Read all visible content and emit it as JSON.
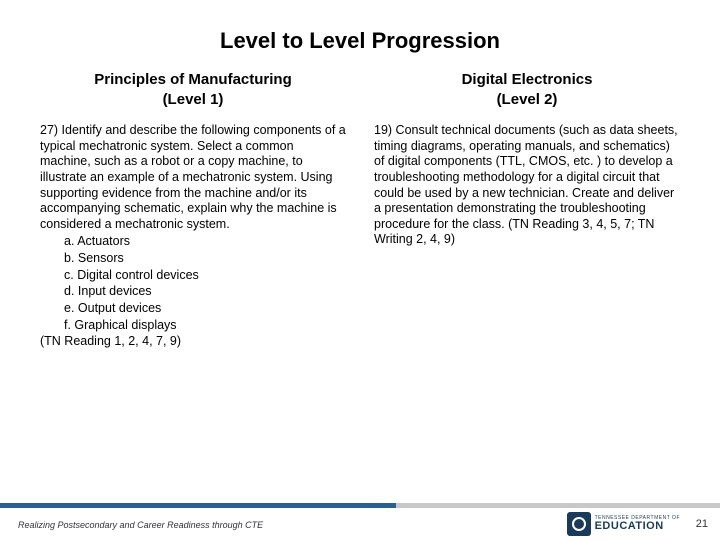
{
  "title": "Level to Level Progression",
  "left": {
    "header": "Principles of Manufacturing\n(Level 1)",
    "intro": "27) Identify and describe the following components of a typical mechatronic system. Select a common machine, such as a robot or a copy machine, to illustrate an example of a mechatronic system. Using supporting evidence from the machine and/or its accompanying schematic, explain why the machine is considered a mechatronic system.",
    "items": {
      "a": "a. Actuators",
      "b": "b. Sensors",
      "c": "c. Digital control devices",
      "d": "d. Input devices",
      "e": "e. Output devices",
      "f": "f. Graphical displays"
    },
    "standards": "(TN Reading 1, 2, 4, 7, 9)"
  },
  "right": {
    "header": "Digital Electronics\n(Level 2)",
    "body": "19) Consult technical documents (such as data sheets, timing diagrams, operating manuals, and schematics) of digital components (TTL, CMOS, etc. ) to develop a troubleshooting methodology for a digital circuit that could be used by a new technician. Create and deliver a presentation demonstrating the troubleshooting procedure for the class. (TN Reading 3, 4, 5, 7; TN Writing 2, 4, 9)"
  },
  "footer": {
    "tagline": "Realizing Postsecondary and Career Readiness through CTE",
    "logo_small": "TENNESSEE DEPARTMENT OF",
    "logo_big": "EDUCATION",
    "page": "21"
  },
  "colors": {
    "bar_blue": "#2b5f8f",
    "bar_gray": "#c8c8c8",
    "logo_navy": "#1a3a5c"
  }
}
